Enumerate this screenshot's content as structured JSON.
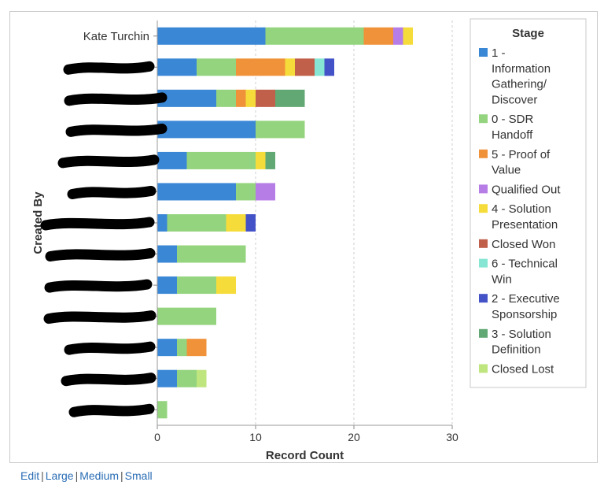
{
  "chart_data": {
    "type": "bar",
    "orientation": "horizontal",
    "stacked": true,
    "xlabel": "Record Count",
    "ylabel": "Created By",
    "xlim": [
      0,
      30
    ],
    "xticks": [
      0,
      10,
      20,
      30
    ],
    "grid": "vertical dashed",
    "legend_title": "Stage",
    "legend_placement": "right",
    "categories": [
      "Kate Turchin",
      "",
      "",
      "",
      "",
      "",
      "",
      "",
      "",
      "",
      "",
      "",
      ""
    ],
    "series": [
      {
        "name": "1 - Information Gathering/ Discover",
        "color": "#3a87d6",
        "values": [
          11,
          4,
          6,
          10,
          3,
          8,
          1,
          2,
          2,
          0,
          2,
          2,
          0
        ]
      },
      {
        "name": "0 - SDR Handoff",
        "color": "#94d47e",
        "values": [
          10,
          4,
          2,
          5,
          7,
          2,
          6,
          7,
          4,
          6,
          1,
          2,
          1
        ]
      },
      {
        "name": "5 - Proof of Value",
        "color": "#f0923a",
        "values": [
          3,
          5,
          1,
          0,
          0,
          0,
          0,
          0,
          0,
          0,
          2,
          0,
          0
        ]
      },
      {
        "name": "Qualified Out",
        "color": "#b67de6",
        "values": [
          1,
          0,
          0,
          0,
          0,
          2,
          0,
          0,
          0,
          0,
          0,
          0,
          0
        ]
      },
      {
        "name": "4 - Solution Presentation",
        "color": "#f6dc3a",
        "values": [
          1,
          1,
          1,
          0,
          1,
          0,
          2,
          0,
          2,
          0,
          0,
          0,
          0
        ]
      },
      {
        "name": "Closed Won",
        "color": "#c0604a",
        "values": [
          0,
          2,
          2,
          0,
          0,
          0,
          0,
          0,
          0,
          0,
          0,
          0,
          0
        ]
      },
      {
        "name": "6 - Technical Win",
        "color": "#86e6d3",
        "values": [
          0,
          1,
          0,
          0,
          0,
          0,
          0,
          0,
          0,
          0,
          0,
          0,
          0
        ]
      },
      {
        "name": "2 - Executive Sponsorship",
        "color": "#4452c8",
        "values": [
          0,
          1,
          0,
          0,
          0,
          0,
          1,
          0,
          0,
          0,
          0,
          0,
          0
        ]
      },
      {
        "name": "3 - Solution Definition",
        "color": "#62a874",
        "values": [
          0,
          0,
          3,
          0,
          1,
          0,
          0,
          0,
          0,
          0,
          0,
          0,
          0
        ]
      },
      {
        "name": "Closed Lost",
        "color": "#bfe57e",
        "values": [
          0,
          0,
          0,
          0,
          0,
          0,
          0,
          0,
          0,
          0,
          0,
          1,
          0
        ]
      }
    ]
  },
  "footer": {
    "links": [
      "Edit",
      "Large",
      "Medium",
      "Small"
    ]
  }
}
